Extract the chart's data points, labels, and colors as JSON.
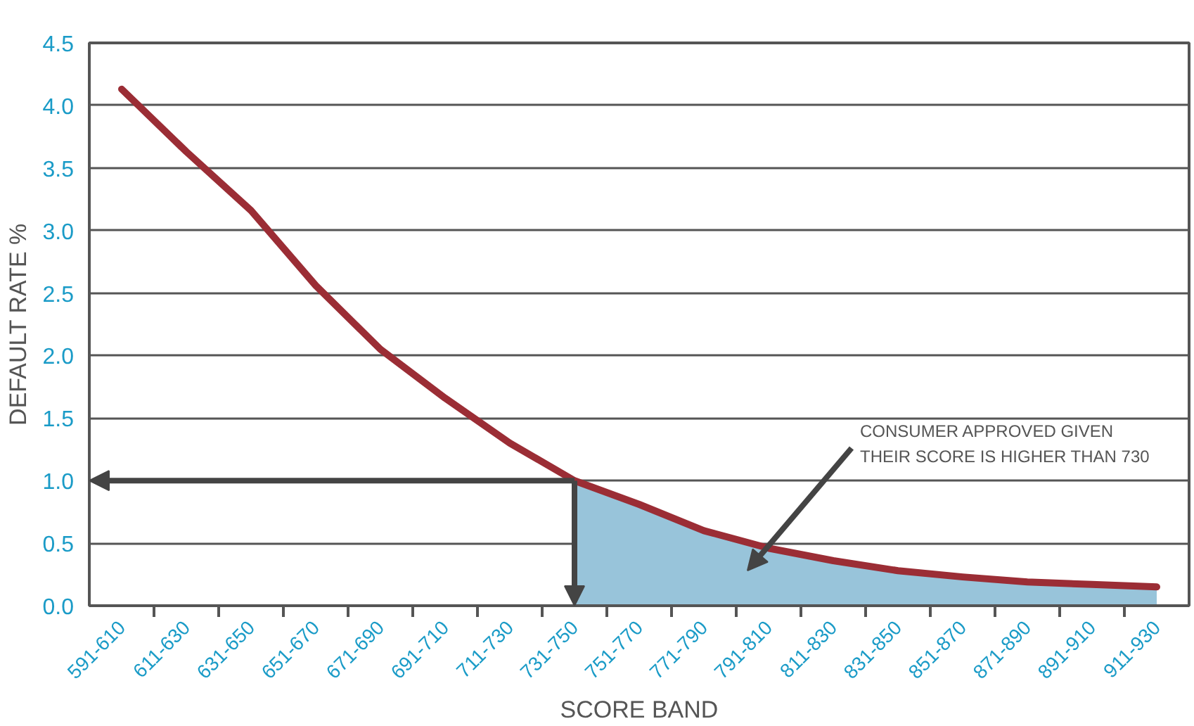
{
  "chart_data": {
    "type": "line",
    "xlabel": "SCORE BAND",
    "ylabel": "DEFAULT RATE %",
    "categories": [
      "591-610",
      "611-630",
      "631-650",
      "651-670",
      "671-690",
      "691-710",
      "711-730",
      "731-750",
      "751-770",
      "771-790",
      "791-810",
      "811-830",
      "831-850",
      "851-870",
      "871-890",
      "891-910",
      "911-930"
    ],
    "series": [
      {
        "type": "area",
        "color": "#98c4da",
        "values": [
          null,
          null,
          null,
          null,
          null,
          null,
          null,
          1.0,
          0.81,
          0.6,
          0.46,
          0.36,
          0.28,
          0.23,
          0.19,
          0.17,
          0.15
        ]
      },
      {
        "color": "#9b2d35",
        "values": [
          4.13,
          3.63,
          3.16,
          2.56,
          2.05,
          1.66,
          1.3,
          1.0,
          0.81,
          0.6,
          0.46,
          0.36,
          0.28,
          0.23,
          0.19,
          0.17,
          0.15
        ]
      }
    ],
    "ylim": [
      0,
      4.5
    ],
    "yticks": [
      {
        "value": 0,
        "label": "0.0"
      },
      {
        "value": 0.5,
        "label": "0.5"
      },
      {
        "value": 1,
        "label": "1.0"
      },
      {
        "value": 1.5,
        "label": "1.5"
      },
      {
        "value": 2,
        "label": "2.0"
      },
      {
        "value": 2.5,
        "label": "2.5"
      },
      {
        "value": 3,
        "label": "3.0"
      },
      {
        "value": 3.5,
        "label": "3.5"
      },
      {
        "value": 4,
        "label": "4.0"
      },
      {
        "value": 4.5,
        "label": "4.5"
      }
    ],
    "grid": "y",
    "annotations": [
      "CONSUMER APPROVED GIVEN\nTHEIR SCORE IS HIGHER THAN 730"
    ]
  }
}
